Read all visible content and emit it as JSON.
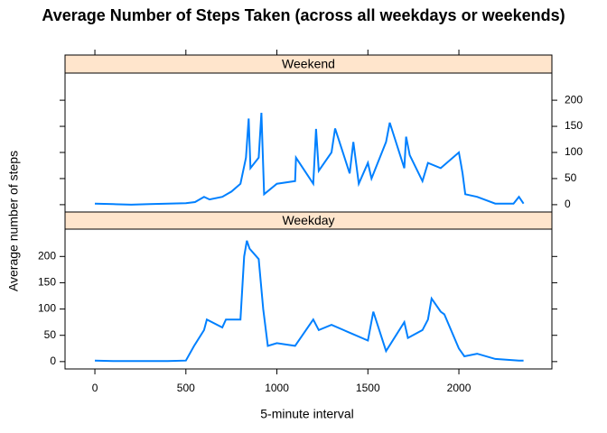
{
  "chart_data": [
    {
      "type": "line",
      "title": "Average Number of Steps Taken (across all weekdays or weekends)",
      "strip": "Weekend",
      "x": [
        0,
        100,
        200,
        300,
        400,
        500,
        550,
        600,
        630,
        700,
        750,
        800,
        830,
        845,
        855,
        900,
        915,
        930,
        1000,
        1100,
        1105,
        1200,
        1215,
        1230,
        1300,
        1320,
        1400,
        1420,
        1450,
        1500,
        1520,
        1600,
        1620,
        1700,
        1710,
        1730,
        1800,
        1830,
        1900,
        2000,
        2010,
        2020,
        2035,
        2100,
        2200,
        2300,
        2330,
        2355
      ],
      "values": [
        2,
        1,
        0,
        1,
        2,
        3,
        5,
        15,
        10,
        15,
        25,
        40,
        90,
        165,
        70,
        90,
        176,
        20,
        40,
        45,
        90,
        40,
        145,
        65,
        100,
        146,
        60,
        120,
        40,
        80,
        50,
        120,
        157,
        70,
        130,
        95,
        45,
        80,
        70,
        100,
        80,
        60,
        20,
        15,
        2,
        2,
        15,
        2
      ],
      "color": "#0080ff",
      "xlim": [
        -164,
        2511
      ],
      "ylim": [
        -14,
        252
      ],
      "yticks": [
        0,
        50,
        100,
        150,
        200
      ],
      "ytick_side": "right"
    },
    {
      "type": "line",
      "strip": "Weekday",
      "xlabel": "5-minute interval",
      "ylabel": "Average number of steps",
      "x": [
        0,
        100,
        200,
        300,
        400,
        500,
        545,
        600,
        615,
        700,
        720,
        800,
        820,
        835,
        850,
        900,
        925,
        950,
        1000,
        1100,
        1200,
        1230,
        1300,
        1400,
        1500,
        1530,
        1600,
        1700,
        1720,
        1800,
        1830,
        1850,
        1900,
        1920,
        2000,
        2030,
        2100,
        2200,
        2330,
        2355
      ],
      "values": [
        2,
        1,
        1,
        1,
        1,
        2,
        30,
        60,
        80,
        65,
        80,
        80,
        200,
        230,
        215,
        195,
        100,
        30,
        35,
        30,
        80,
        60,
        70,
        55,
        40,
        95,
        20,
        75,
        45,
        60,
        80,
        120,
        95,
        90,
        25,
        10,
        15,
        5,
        2,
        2
      ],
      "color": "#0080ff",
      "xlim": [
        -164,
        2511
      ],
      "ylim": [
        -14,
        252
      ],
      "xticks": [
        0,
        500,
        1000,
        1500,
        2000
      ],
      "yticks": [
        0,
        50,
        100,
        150,
        200
      ],
      "ytick_side": "left"
    }
  ]
}
